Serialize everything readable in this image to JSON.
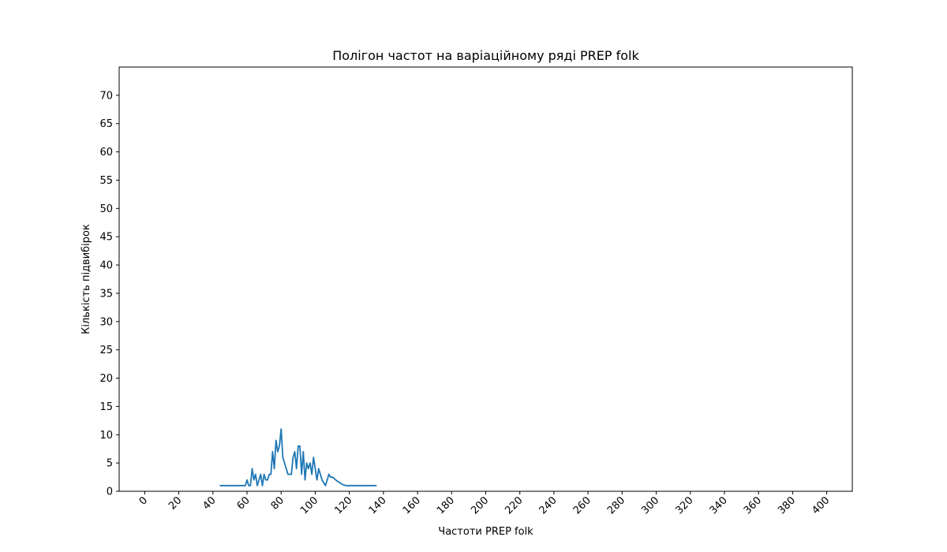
{
  "chart_data": {
    "type": "line",
    "title": "Полігон частот на варіаційному ряді PREP folk",
    "xlabel": "Частоти PREP folk",
    "ylabel": "Кількість підвибірок",
    "xlim": [
      -15,
      415
    ],
    "ylim": [
      0,
      75
    ],
    "xticks": [
      0,
      20,
      40,
      60,
      80,
      100,
      120,
      140,
      160,
      180,
      200,
      220,
      240,
      260,
      280,
      300,
      320,
      340,
      360,
      380,
      400
    ],
    "yticks": [
      0,
      5,
      10,
      15,
      20,
      25,
      30,
      35,
      40,
      45,
      50,
      55,
      60,
      65,
      70
    ],
    "grid": false,
    "legend": "none",
    "series": [
      {
        "color": "#1f77b4",
        "x": [
          44,
          59,
          60,
          61,
          62,
          63,
          64,
          65,
          66,
          67,
          68,
          69,
          70,
          71,
          72,
          73,
          74,
          75,
          76,
          77,
          78,
          79,
          80,
          81,
          82,
          83,
          84,
          85,
          86,
          87,
          88,
          89,
          90,
          91,
          92,
          93,
          94,
          95,
          96,
          97,
          98,
          99,
          100,
          101,
          102,
          103,
          104,
          105,
          106,
          107,
          108,
          109,
          110,
          111,
          112,
          113,
          114,
          115,
          116,
          117,
          118,
          119,
          120,
          121,
          122,
          123,
          124,
          125,
          126,
          127,
          128,
          129,
          130,
          131,
          132,
          133,
          134,
          135,
          136
        ],
        "y": [
          1,
          1,
          2,
          1,
          1,
          4,
          2,
          3,
          1,
          2,
          3,
          1,
          3,
          2,
          2,
          3,
          3,
          7,
          4,
          9,
          7,
          8,
          11,
          6,
          5,
          4,
          3,
          3,
          3,
          6,
          7,
          4,
          8,
          8,
          3,
          7,
          2,
          5,
          4,
          5,
          3,
          6,
          4,
          2,
          4,
          3,
          2,
          1.5,
          1,
          2,
          3,
          2.5,
          2.5,
          2.3,
          2,
          1.8,
          1.6,
          1.4,
          1.2,
          1.1,
          1,
          1,
          1,
          1,
          1,
          1,
          1,
          1,
          1,
          1,
          1,
          1,
          1,
          1,
          1,
          1,
          1,
          1,
          1
        ]
      }
    ]
  }
}
